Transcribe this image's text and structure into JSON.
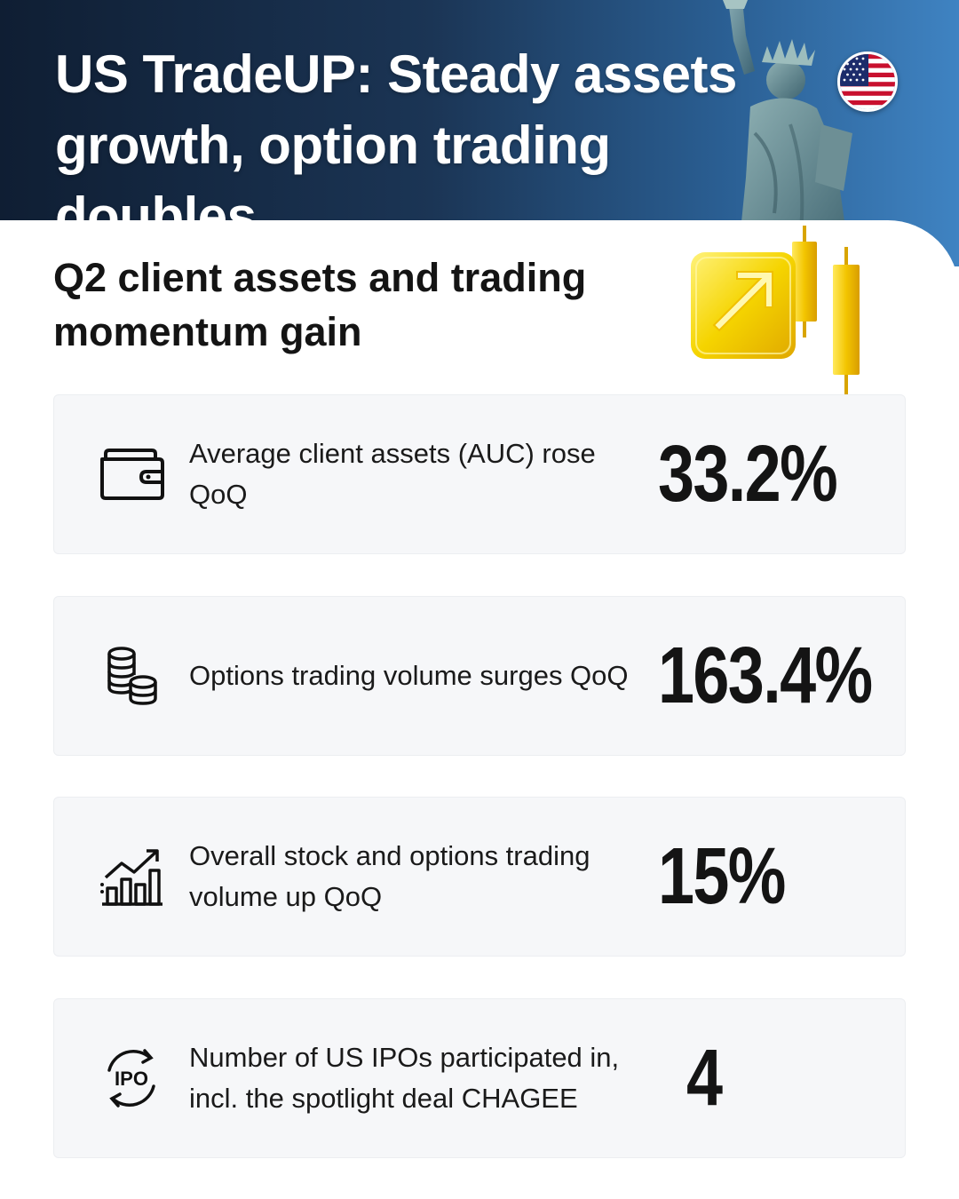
{
  "header": {
    "title": "US TradeUP: Steady assets growth, option trading doubles"
  },
  "section": {
    "subtitle": "Q2 client assets and trading momentum gain"
  },
  "stats": [
    {
      "icon": "wallet-icon",
      "label": "Average client assets (AUC) rose QoQ",
      "value": "33.2%"
    },
    {
      "icon": "coins-stack-icon",
      "label": "Options trading volume surges QoQ",
      "value": "163.4%"
    },
    {
      "icon": "growth-chart-icon",
      "label": "Overall stock and options trading volume up QoQ",
      "value": "15%"
    },
    {
      "icon": "ipo-icon",
      "label": "Number of US IPOs participated in, incl. the spotlight deal CHAGEE",
      "value": "4"
    }
  ],
  "colors": {
    "header_dark": "#0f1e33",
    "header_light": "#3f83c2",
    "card_bg": "#f6f7f9",
    "accent_gold": "#f5d400"
  }
}
